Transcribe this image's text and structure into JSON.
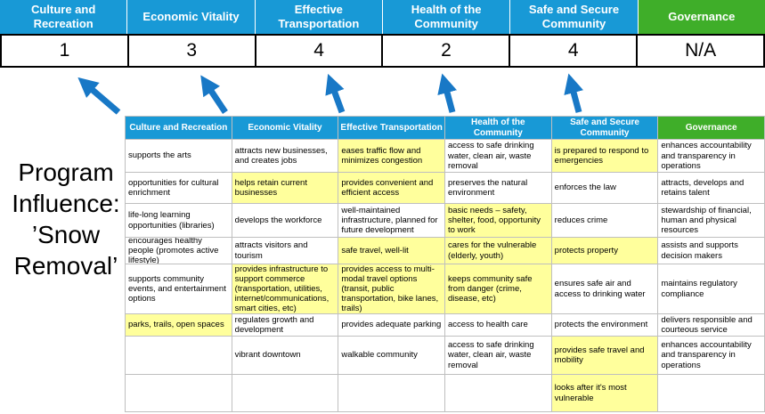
{
  "title": {
    "text": "Program\nInfluence:\n’Snow\nRemoval’"
  },
  "colors": {
    "blue": "#1899d6",
    "green": "#3fae29",
    "highlight": "#ffff9c",
    "arrow": "#1878c6"
  },
  "scoreboard": [
    {
      "label": "Culture and Recreation",
      "score": "1",
      "color": "blue"
    },
    {
      "label": "Economic Vitality",
      "score": "3",
      "color": "blue"
    },
    {
      "label": "Effective Transportation",
      "score": "4",
      "color": "blue"
    },
    {
      "label": "Health of the Community",
      "score": "2",
      "color": "blue"
    },
    {
      "label": "Safe and Secure Community",
      "score": "4",
      "color": "blue"
    },
    {
      "label": "Governance",
      "score": "N/A",
      "color": "green"
    }
  ],
  "matrix": {
    "headers": [
      {
        "label": "Culture and Recreation",
        "color": "blue"
      },
      {
        "label": "Economic Vitality",
        "color": "blue"
      },
      {
        "label": "Effective Transportation",
        "color": "blue"
      },
      {
        "label": "Health of the Community",
        "color": "blue"
      },
      {
        "label": "Safe and Secure Community",
        "color": "blue"
      },
      {
        "label": "Governance",
        "color": "green"
      }
    ],
    "rows": [
      [
        {
          "t": "supports the arts",
          "hl": false
        },
        {
          "t": "attracts new businesses, and creates jobs",
          "hl": false
        },
        {
          "t": "eases traffic flow and minimizes congestion",
          "hl": true
        },
        {
          "t": "access to safe drinking water, clean air, waste removal",
          "hl": false
        },
        {
          "t": "is prepared to respond to emergencies",
          "hl": true
        },
        {
          "t": "enhances accountability and transparency in operations",
          "hl": false
        }
      ],
      [
        {
          "t": "opportunities for cultural enrichment",
          "hl": false
        },
        {
          "t": "helps retain current businesses",
          "hl": true
        },
        {
          "t": "provides convenient and efficient access",
          "hl": true
        },
        {
          "t": "preserves the natural environment",
          "hl": false
        },
        {
          "t": "enforces the law",
          "hl": false
        },
        {
          "t": "attracts, develops and retains talent",
          "hl": false
        }
      ],
      [
        {
          "t": "life-long learning opportunities (libraries)",
          "hl": false
        },
        {
          "t": "develops the workforce",
          "hl": false
        },
        {
          "t": "well-maintained infrastructure, planned for future development",
          "hl": false
        },
        {
          "t": "basic needs – safety, shelter, food, opportunity to work",
          "hl": true
        },
        {
          "t": "reduces crime",
          "hl": false
        },
        {
          "t": "stewardship of financial, human and physical resources",
          "hl": false
        }
      ],
      [
        {
          "t": "encourages healthy people (promotes active lifestyle)",
          "hl": false
        },
        {
          "t": "attracts visitors and tourism",
          "hl": false
        },
        {
          "t": "safe travel, well-lit",
          "hl": true
        },
        {
          "t": "cares for the vulnerable (elderly, youth)",
          "hl": true
        },
        {
          "t": "protects property",
          "hl": true
        },
        {
          "t": "assists and supports decision makers",
          "hl": false
        }
      ],
      [
        {
          "t": "supports community events, and entertainment options",
          "hl": false
        },
        {
          "t": "provides infrastructure to support commerce (transportation, utilities, internet/communications, smart cities, etc)",
          "hl": true
        },
        {
          "t": "provides access to multi-modal travel options (transit, public transportation, bike lanes, trails)",
          "hl": true
        },
        {
          "t": "keeps community safe from danger (crime, disease, etc)",
          "hl": true
        },
        {
          "t": "ensures safe air and access to drinking water",
          "hl": false
        },
        {
          "t": "maintains regulatory compliance",
          "hl": false
        }
      ],
      [
        {
          "t": "parks, trails, open spaces",
          "hl": true
        },
        {
          "t": "regulates growth and development",
          "hl": false
        },
        {
          "t": "provides adequate parking",
          "hl": false
        },
        {
          "t": "access to health care",
          "hl": false
        },
        {
          "t": "protects the environment",
          "hl": false
        },
        {
          "t": "delivers responsible and courteous service",
          "hl": false
        }
      ],
      [
        {
          "t": "",
          "hl": false
        },
        {
          "t": "vibrant downtown",
          "hl": false
        },
        {
          "t": "walkable community",
          "hl": false
        },
        {
          "t": "access to safe drinking water, clean air, waste removal",
          "hl": false
        },
        {
          "t": "provides safe travel and mobility",
          "hl": true
        },
        {
          "t": "enhances accountability and transparency in operations",
          "hl": false
        }
      ],
      [
        {
          "t": "",
          "hl": false
        },
        {
          "t": "",
          "hl": false
        },
        {
          "t": "",
          "hl": false
        },
        {
          "t": "",
          "hl": false
        },
        {
          "t": "looks after it's most vulnerable",
          "hl": true
        },
        {
          "t": "",
          "hl": false
        }
      ]
    ]
  }
}
